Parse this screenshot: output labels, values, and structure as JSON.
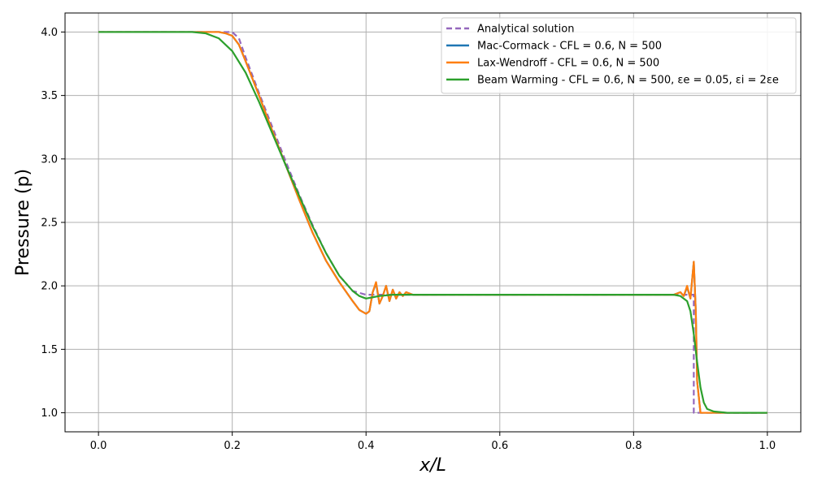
{
  "chart_data": {
    "type": "line",
    "xlabel": "x/L",
    "ylabel": "Pressure (p)",
    "xlim": [
      -0.05,
      1.05
    ],
    "ylim": [
      0.85,
      4.15
    ],
    "xticks": [
      0.0,
      0.2,
      0.4,
      0.6,
      0.8,
      1.0
    ],
    "xtick_labels": [
      "0.0",
      "0.2",
      "0.4",
      "0.6",
      "0.8",
      "1.0"
    ],
    "yticks": [
      1.0,
      1.5,
      2.0,
      2.5,
      3.0,
      3.5,
      4.0
    ],
    "ytick_labels": [
      "1.0",
      "1.5",
      "2.0",
      "2.5",
      "3.0",
      "3.5",
      "4.0"
    ],
    "grid": true,
    "legend_position": "top-right",
    "series": [
      {
        "name": "Analytical solution",
        "color": "#9467bd",
        "dashed": true,
        "x": [
          0.0,
          0.2,
          0.21,
          0.22,
          0.24,
          0.26,
          0.28,
          0.3,
          0.32,
          0.34,
          0.36,
          0.38,
          0.4,
          0.41,
          0.6,
          0.8,
          0.89,
          0.89,
          1.0
        ],
        "y": [
          4.0,
          4.0,
          3.95,
          3.8,
          3.52,
          3.25,
          2.98,
          2.72,
          2.48,
          2.26,
          2.08,
          1.96,
          1.93,
          1.93,
          1.93,
          1.93,
          1.93,
          1.0,
          1.0
        ]
      },
      {
        "name": "Mac-Cormack - CFL = 0.6, N = 500",
        "color": "#1f77b4",
        "dashed": false,
        "x": [
          0.0,
          0.18,
          0.19,
          0.2,
          0.21,
          0.22,
          0.24,
          0.26,
          0.28,
          0.3,
          0.32,
          0.34,
          0.36,
          0.38,
          0.39,
          0.4,
          0.405,
          0.41,
          0.415,
          0.42,
          0.425,
          0.43,
          0.435,
          0.44,
          0.445,
          0.45,
          0.455,
          0.46,
          0.47,
          0.5,
          0.6,
          0.7,
          0.8,
          0.86,
          0.87,
          0.875,
          0.88,
          0.885,
          0.89,
          0.893,
          0.895,
          0.9,
          0.91,
          0.92,
          1.0
        ],
        "y": [
          4.0,
          4.0,
          3.99,
          3.97,
          3.9,
          3.77,
          3.5,
          3.22,
          2.95,
          2.68,
          2.42,
          2.2,
          2.03,
          1.88,
          1.81,
          1.78,
          1.8,
          1.95,
          2.02,
          1.86,
          1.92,
          2.0,
          1.88,
          1.97,
          1.9,
          1.95,
          1.92,
          1.95,
          1.93,
          1.93,
          1.93,
          1.93,
          1.93,
          1.93,
          1.95,
          1.92,
          1.99,
          1.9,
          2.19,
          1.8,
          1.25,
          1.0,
          1.0,
          1.0,
          1.0
        ]
      },
      {
        "name": "Lax-Wendroff - CFL = 0.6, N = 500",
        "color": "#ff7f0e",
        "dashed": false,
        "x": [
          0.0,
          0.18,
          0.19,
          0.2,
          0.21,
          0.22,
          0.24,
          0.26,
          0.28,
          0.3,
          0.32,
          0.34,
          0.36,
          0.38,
          0.39,
          0.4,
          0.405,
          0.41,
          0.415,
          0.42,
          0.425,
          0.43,
          0.435,
          0.44,
          0.445,
          0.45,
          0.455,
          0.46,
          0.47,
          0.5,
          0.6,
          0.7,
          0.8,
          0.86,
          0.87,
          0.875,
          0.88,
          0.885,
          0.89,
          0.893,
          0.895,
          0.9,
          0.91,
          0.92,
          1.0
        ],
        "y": [
          4.0,
          4.0,
          3.99,
          3.97,
          3.9,
          3.77,
          3.5,
          3.22,
          2.95,
          2.68,
          2.42,
          2.2,
          2.03,
          1.88,
          1.81,
          1.78,
          1.8,
          1.95,
          2.03,
          1.86,
          1.92,
          2.0,
          1.88,
          1.97,
          1.9,
          1.95,
          1.92,
          1.95,
          1.93,
          1.93,
          1.93,
          1.93,
          1.93,
          1.93,
          1.95,
          1.92,
          2.0,
          1.9,
          2.19,
          1.8,
          1.25,
          1.0,
          1.0,
          1.0,
          1.0
        ]
      },
      {
        "name": "Beam Warming - CFL = 0.6, N = 500, εe = 0.05, εi = 2εe",
        "color": "#2ca02c",
        "dashed": false,
        "x": [
          0.0,
          0.14,
          0.16,
          0.18,
          0.2,
          0.22,
          0.24,
          0.26,
          0.28,
          0.3,
          0.32,
          0.34,
          0.36,
          0.38,
          0.39,
          0.4,
          0.41,
          0.42,
          0.44,
          0.5,
          0.6,
          0.7,
          0.8,
          0.86,
          0.87,
          0.88,
          0.885,
          0.89,
          0.895,
          0.9,
          0.905,
          0.91,
          0.92,
          0.94,
          1.0
        ],
        "y": [
          4.0,
          4.0,
          3.99,
          3.95,
          3.85,
          3.68,
          3.45,
          3.2,
          2.95,
          2.71,
          2.47,
          2.26,
          2.08,
          1.96,
          1.92,
          1.9,
          1.91,
          1.92,
          1.93,
          1.93,
          1.93,
          1.93,
          1.93,
          1.93,
          1.92,
          1.88,
          1.8,
          1.62,
          1.4,
          1.2,
          1.08,
          1.03,
          1.01,
          1.0,
          1.0
        ]
      }
    ]
  },
  "legend": {
    "items": [
      {
        "label": "Analytical solution"
      },
      {
        "label": "Mac-Cormack - CFL = 0.6, N = 500"
      },
      {
        "label": "Lax-Wendroff - CFL = 0.6, N = 500"
      },
      {
        "label": "Beam Warming - CFL = 0.6, N = 500, εe = 0.05, εi = 2εe"
      }
    ]
  }
}
